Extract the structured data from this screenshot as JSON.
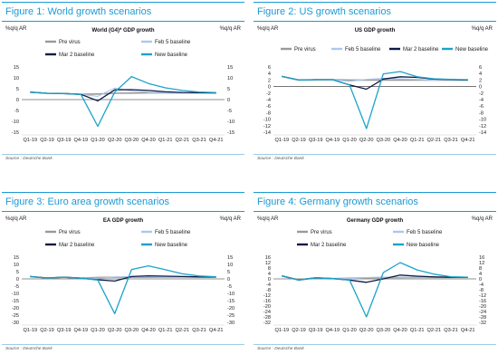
{
  "source": "Source : Deutsche Bank",
  "colors": {
    "pre": "#9a9a9a",
    "feb": "#a9c8ee",
    "mar": "#0d1b45",
    "new": "#1ba3c9",
    "accent": "#1a9ad6"
  },
  "chart_data": [
    {
      "type": "line",
      "figure_title": "Figure 1: World growth scenarios",
      "title": "World (G4)* GDP growth",
      "ylabel_left": "%q/q AR",
      "ylabel_right": "%q/q AR",
      "categories": [
        "Q1-19",
        "Q2-19",
        "Q3-19",
        "Q4-19",
        "Q1-20",
        "Q2-20",
        "Q3-20",
        "Q4-20",
        "Q1-21",
        "Q2-21",
        "Q3-21",
        "Q4-21"
      ],
      "ylim": [
        -15,
        15
      ],
      "yticks": [
        -15,
        -10,
        -5,
        0,
        5,
        10,
        15
      ],
      "legend_layout": "two-column",
      "series": [
        {
          "name": "Pre virus",
          "color_key": "pre",
          "values": [
            3.4,
            2.9,
            2.8,
            2.4,
            2.6,
            2.9,
            3.0,
            3.1,
            3.1,
            3.1,
            3.1,
            3.1
          ]
        },
        {
          "name": "Feb 5 baseline",
          "color_key": "feb",
          "values": [
            3.4,
            2.9,
            2.8,
            2.4,
            1.5,
            5.3,
            4.0,
            3.4,
            3.2,
            3.1,
            3.1,
            3.1
          ]
        },
        {
          "name": "Mar 2 baseline",
          "color_key": "mar",
          "values": [
            3.4,
            2.9,
            2.8,
            2.4,
            -0.6,
            4.5,
            4.6,
            4.2,
            3.6,
            3.3,
            3.2,
            3.1
          ]
        },
        {
          "name": "New baseline",
          "color_key": "new",
          "values": [
            3.4,
            2.9,
            2.8,
            2.4,
            -12.3,
            3.4,
            10.6,
            7.4,
            5.4,
            4.2,
            3.5,
            3.2
          ]
        }
      ]
    },
    {
      "type": "line",
      "figure_title": "Figure 2: US growth scenarios",
      "title": "US GDP growth",
      "ylabel_left": "%q/q AR",
      "ylabel_right": "%q/q AR",
      "categories": [
        "Q1-19",
        "Q2-19",
        "Q3-19",
        "Q4-19",
        "Q1-20",
        "Q2-20",
        "Q3-20",
        "Q4-20",
        "Q1-21",
        "Q2-21",
        "Q3-21",
        "Q4-21"
      ],
      "ylim": [
        -14,
        6
      ],
      "yticks": [
        -14,
        -12,
        -10,
        -8,
        -6,
        -4,
        -2,
        0,
        2,
        4,
        6
      ],
      "legend_layout": "single-row",
      "series": [
        {
          "name": "Pre virus",
          "color_key": "pre",
          "values": [
            3.1,
            2.0,
            2.1,
            2.1,
            2.0,
            2.0,
            2.0,
            2.0,
            2.0,
            2.0,
            2.0,
            2.0
          ]
        },
        {
          "name": "Feb 5 baseline",
          "color_key": "feb",
          "values": [
            3.1,
            2.0,
            2.1,
            2.1,
            1.6,
            2.2,
            2.5,
            2.4,
            2.2,
            2.0,
            2.0,
            2.0
          ]
        },
        {
          "name": "Mar 2 baseline",
          "color_key": "mar",
          "values": [
            3.1,
            2.0,
            2.1,
            2.1,
            0.5,
            -0.8,
            2.3,
            3.0,
            2.8,
            2.3,
            2.1,
            2.0
          ]
        },
        {
          "name": "New baseline",
          "color_key": "new",
          "values": [
            3.1,
            2.0,
            2.1,
            2.1,
            0.5,
            -12.9,
            3.9,
            4.6,
            3.0,
            2.4,
            2.2,
            2.1
          ]
        }
      ]
    },
    {
      "type": "line",
      "figure_title": "Figure 3: Euro area growth scenarios",
      "title": "EA GDP growth",
      "ylabel_left": "%q/q AR",
      "ylabel_right": "%q/q AR",
      "categories": [
        "Q1-19",
        "Q2-19",
        "Q3-19",
        "Q4-19",
        "Q1-20",
        "Q2-20",
        "Q3-20",
        "Q4-20",
        "Q1-21",
        "Q2-21",
        "Q3-21",
        "Q4-21"
      ],
      "ylim": [
        -30,
        15
      ],
      "yticks": [
        -30,
        -25,
        -20,
        -15,
        -10,
        -5,
        0,
        5,
        10,
        15
      ],
      "legend_layout": "two-column",
      "series": [
        {
          "name": "Pre virus",
          "color_key": "pre",
          "values": [
            1.6,
            0.6,
            1.1,
            0.5,
            1.0,
            1.1,
            1.2,
            1.2,
            1.3,
            1.3,
            1.3,
            1.3
          ]
        },
        {
          "name": "Feb 5 baseline",
          "color_key": "feb",
          "values": [
            1.6,
            0.6,
            1.1,
            0.5,
            0.5,
            1.3,
            1.6,
            1.5,
            1.4,
            1.3,
            1.3,
            1.3
          ]
        },
        {
          "name": "Mar 2 baseline",
          "color_key": "mar",
          "values": [
            1.6,
            0.6,
            1.1,
            0.5,
            -0.6,
            -1.5,
            1.6,
            2.1,
            1.9,
            1.6,
            1.4,
            1.3
          ]
        },
        {
          "name": "New baseline",
          "color_key": "new",
          "values": [
            1.6,
            0.6,
            1.1,
            0.5,
            -0.8,
            -24.0,
            6.5,
            9.0,
            6.3,
            3.5,
            2.0,
            1.5
          ]
        }
      ]
    },
    {
      "type": "line",
      "figure_title": "Figure 4: Germany growth scenarios",
      "title": "Germany GDP growth",
      "ylabel_left": "%q/q AR",
      "ylabel_right": "%q/q AR",
      "categories": [
        "Q1-19",
        "Q2-19",
        "Q3-19",
        "Q4-19",
        "Q1-20",
        "Q2-20",
        "Q3-20",
        "Q4-20",
        "Q1-21",
        "Q2-21",
        "Q3-21",
        "Q4-21"
      ],
      "ylim": [
        -32,
        16
      ],
      "yticks": [
        -32,
        -28,
        -24,
        -20,
        -16,
        -12,
        -8,
        -4,
        0,
        4,
        8,
        12,
        16
      ],
      "legend_layout": "two-column",
      "series": [
        {
          "name": "Pre virus",
          "color_key": "pre",
          "values": [
            2.2,
            -0.8,
            0.8,
            0.2,
            0.5,
            0.8,
            1.0,
            1.0,
            1.1,
            1.1,
            1.1,
            1.1
          ]
        },
        {
          "name": "Feb 5 baseline",
          "color_key": "feb",
          "values": [
            2.2,
            -0.8,
            0.8,
            0.2,
            0.2,
            1.0,
            1.3,
            1.3,
            1.2,
            1.1,
            1.1,
            1.1
          ]
        },
        {
          "name": "Mar 2 baseline",
          "color_key": "mar",
          "values": [
            2.2,
            -0.8,
            0.8,
            0.2,
            -0.9,
            -2.5,
            0.0,
            2.8,
            2.0,
            1.5,
            1.2,
            1.1
          ]
        },
        {
          "name": "New baseline",
          "color_key": "new",
          "values": [
            2.2,
            -0.8,
            0.8,
            0.2,
            -0.8,
            -28.0,
            4.6,
            12.0,
            6.6,
            3.5,
            1.6,
            1.2
          ]
        }
      ]
    }
  ]
}
